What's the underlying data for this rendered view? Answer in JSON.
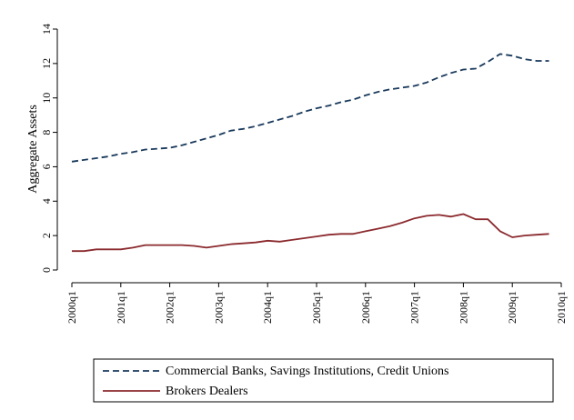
{
  "chart_data": {
    "type": "line",
    "title": "",
    "xlabel": "",
    "ylabel": "Aggregate Assets",
    "x_ticks": [
      "2000q1",
      "2001q1",
      "2002q1",
      "2003q1",
      "2004q1",
      "2005q1",
      "2006q1",
      "2007q1",
      "2008q1",
      "2009q1",
      "2010q1"
    ],
    "y_ticks": [
      "0",
      "2",
      "4",
      "6",
      "8",
      "10",
      "12",
      "14"
    ],
    "xlim": [
      "2000q1",
      "2010q1"
    ],
    "ylim": [
      0,
      14
    ],
    "grid": false,
    "legend_position": "bottom",
    "x": [
      "2000q1",
      "2000q2",
      "2000q3",
      "2000q4",
      "2001q1",
      "2001q2",
      "2001q3",
      "2001q4",
      "2002q1",
      "2002q2",
      "2002q3",
      "2002q4",
      "2003q1",
      "2003q2",
      "2003q3",
      "2003q4",
      "2004q1",
      "2004q2",
      "2004q3",
      "2004q4",
      "2005q1",
      "2005q2",
      "2005q3",
      "2005q4",
      "2006q1",
      "2006q2",
      "2006q3",
      "2006q4",
      "2007q1",
      "2007q2",
      "2007q3",
      "2007q4",
      "2008q1",
      "2008q2",
      "2008q3",
      "2008q4",
      "2009q1",
      "2009q2",
      "2009q3",
      "2009q4"
    ],
    "series": [
      {
        "name": "Commercial Banks, Savings Institutions, Credit Unions",
        "color": "#1a3a5c",
        "dash": "dashed",
        "values": [
          6.3,
          6.4,
          6.5,
          6.6,
          6.75,
          6.85,
          7.0,
          7.05,
          7.1,
          7.25,
          7.45,
          7.65,
          7.85,
          8.1,
          8.2,
          8.35,
          8.55,
          8.75,
          8.95,
          9.2,
          9.4,
          9.55,
          9.75,
          9.9,
          10.15,
          10.35,
          10.5,
          10.6,
          10.7,
          10.9,
          11.2,
          11.45,
          11.65,
          11.7,
          12.1,
          12.55,
          12.45,
          12.25,
          12.15,
          12.15
        ]
      },
      {
        "name": "Brokers Dealers",
        "color": "#8b2a2e",
        "dash": "solid",
        "values": [
          1.1,
          1.1,
          1.2,
          1.2,
          1.2,
          1.3,
          1.45,
          1.45,
          1.45,
          1.45,
          1.4,
          1.3,
          1.4,
          1.5,
          1.55,
          1.6,
          1.7,
          1.65,
          1.75,
          1.85,
          1.95,
          2.05,
          2.1,
          2.1,
          2.25,
          2.4,
          2.55,
          2.75,
          3.0,
          3.15,
          3.2,
          3.1,
          3.25,
          2.95,
          2.95,
          2.25,
          1.9,
          2.0,
          2.05,
          2.1
        ]
      }
    ]
  }
}
